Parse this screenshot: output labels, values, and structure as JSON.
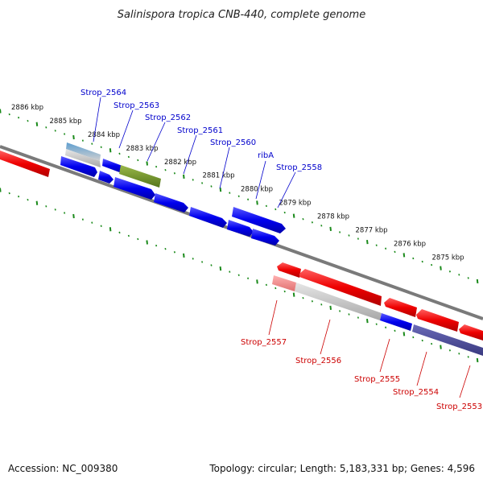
{
  "title": "Salinispora tropica CNB-440, complete genome",
  "footer": {
    "accession": "Accession: NC_009380",
    "summary": "Topology: circular; Length: 5,183,331 bp; Genes: 4,596"
  },
  "kbp_labels": [
    "2886 kbp",
    "2885 kbp",
    "2884 kbp",
    "2883 kbp",
    "2882 kbp",
    "2881 kbp",
    "2880 kbp",
    "2879 kbp",
    "2878 kbp",
    "2877 kbp",
    "2876 kbp",
    "2875 kbp"
  ],
  "forward_gene_labels": [
    "Strop_2564",
    "Strop_2563",
    "Strop_2562",
    "Strop_2561",
    "Strop_2560",
    "ribA",
    "Strop_2558"
  ],
  "reverse_gene_labels": [
    "Strop_2557",
    "Strop_2556",
    "Strop_2555",
    "Strop_2554",
    "Strop_2553"
  ],
  "colors": {
    "forward_gene": "#0000ee",
    "reverse_gene": "#ee0000",
    "highlight_gene": "#6b8e23",
    "backbone": "#808080",
    "tick": "#1a8a1a"
  }
}
